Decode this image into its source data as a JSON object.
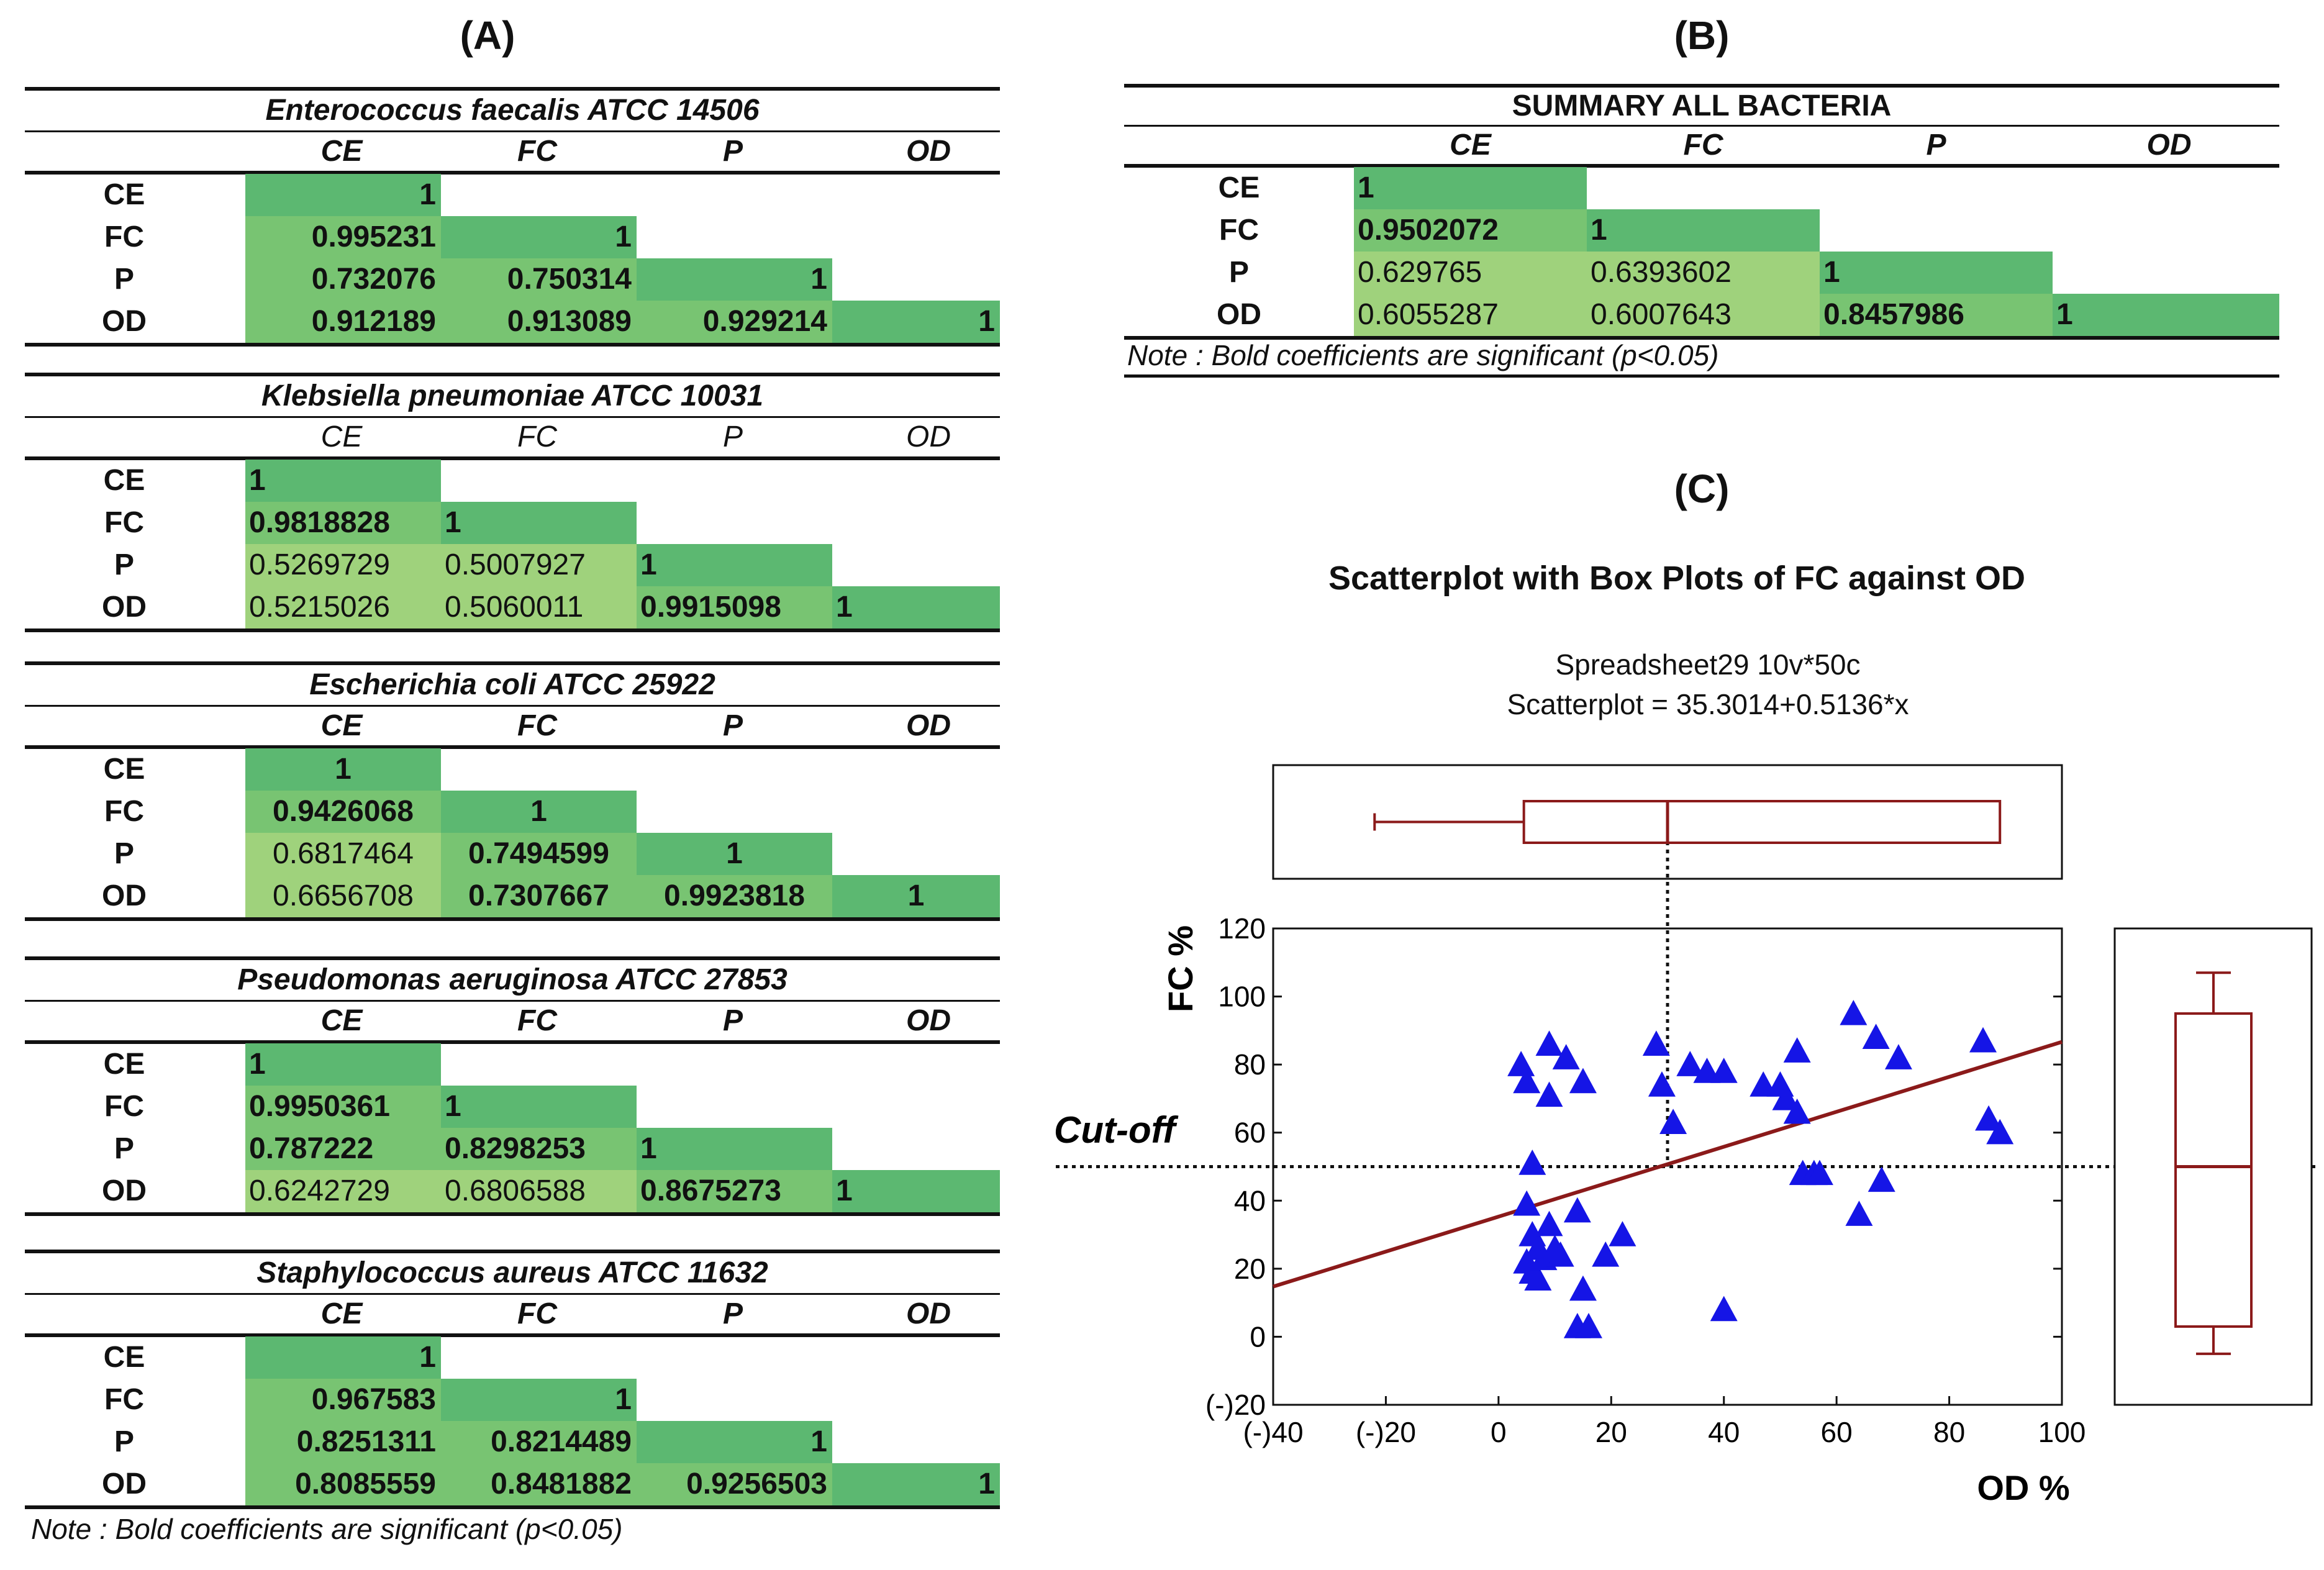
{
  "panels": {
    "a": "(A)",
    "b": "(B)",
    "c": "(C)"
  },
  "tables": [
    {
      "title": "Enterococcus faecalis ATCC 14506",
      "header_bold": true,
      "align": "right",
      "columns": [
        "CE",
        "FC",
        "P",
        "OD"
      ],
      "rows": [
        {
          "label": "CE",
          "values": [
            "1"
          ],
          "bold": [
            true
          ]
        },
        {
          "label": "FC",
          "values": [
            "0.995231",
            "1"
          ],
          "bold": [
            true,
            true
          ]
        },
        {
          "label": "P",
          "values": [
            "0.732076",
            "0.750314",
            "1"
          ],
          "bold": [
            true,
            true,
            true
          ]
        },
        {
          "label": "OD",
          "values": [
            "0.912189",
            "0.913089",
            "0.929214",
            "1"
          ],
          "bold": [
            true,
            true,
            true,
            true
          ]
        }
      ]
    },
    {
      "title": "Klebsiella pneumoniae ATCC 10031",
      "header_bold": false,
      "align": "left",
      "columns": [
        "CE",
        "FC",
        "P",
        "OD"
      ],
      "rows": [
        {
          "label": "CE",
          "values": [
            "1"
          ],
          "bold": [
            true
          ]
        },
        {
          "label": "FC",
          "values": [
            "0.9818828",
            "1"
          ],
          "bold": [
            true,
            true
          ]
        },
        {
          "label": "P",
          "values": [
            "0.5269729",
            "0.5007927",
            "1"
          ],
          "bold": [
            false,
            false,
            true
          ]
        },
        {
          "label": "OD",
          "values": [
            "0.5215026",
            "0.5060011",
            "0.9915098",
            "1"
          ],
          "bold": [
            false,
            false,
            true,
            true
          ]
        }
      ]
    },
    {
      "title": "Escherichia coli ATCC 25922",
      "header_bold": true,
      "align": "center",
      "columns": [
        "CE",
        "FC",
        "P",
        "OD"
      ],
      "rows": [
        {
          "label": "CE",
          "values": [
            "1"
          ],
          "bold": [
            true
          ]
        },
        {
          "label": "FC",
          "values": [
            "0.9426068",
            "1"
          ],
          "bold": [
            true,
            true
          ]
        },
        {
          "label": "P",
          "values": [
            "0.6817464",
            "0.7494599",
            "1"
          ],
          "bold": [
            false,
            true,
            true
          ]
        },
        {
          "label": "OD",
          "values": [
            "0.6656708",
            "0.7307667",
            "0.9923818",
            "1"
          ],
          "bold": [
            false,
            true,
            true,
            true
          ]
        }
      ]
    },
    {
      "title": "Pseudomonas aeruginosa ATCC 27853",
      "header_bold": true,
      "align": "left",
      "columns": [
        "CE",
        "FC",
        "P",
        "OD"
      ],
      "rows": [
        {
          "label": "CE",
          "values": [
            "1"
          ],
          "bold": [
            true
          ]
        },
        {
          "label": "FC",
          "values": [
            "0.9950361",
            "1"
          ],
          "bold": [
            true,
            true
          ]
        },
        {
          "label": "P",
          "values": [
            "0.787222",
            "0.8298253",
            "1"
          ],
          "bold": [
            true,
            true,
            true
          ]
        },
        {
          "label": "OD",
          "values": [
            "0.6242729",
            "0.6806588",
            "0.8675273",
            "1"
          ],
          "bold": [
            false,
            false,
            true,
            true
          ]
        }
      ]
    },
    {
      "title": "Staphylococcus aureus ATCC 11632",
      "header_bold": true,
      "align": "right",
      "columns": [
        "CE",
        "FC",
        "P",
        "OD"
      ],
      "rows": [
        {
          "label": "CE",
          "values": [
            "1"
          ],
          "bold": [
            true
          ]
        },
        {
          "label": "FC",
          "values": [
            "0.967583",
            "1"
          ],
          "bold": [
            true,
            true
          ]
        },
        {
          "label": "P",
          "values": [
            "0.8251311",
            "0.8214489",
            "1"
          ],
          "bold": [
            true,
            true,
            true
          ]
        },
        {
          "label": "OD",
          "values": [
            "0.8085559",
            "0.8481882",
            "0.9256503",
            "1"
          ],
          "bold": [
            true,
            true,
            true,
            true
          ]
        }
      ]
    }
  ],
  "note_a": "Note : Bold coefficients are significant (p<0.05)",
  "summary": {
    "title": "SUMMARY ALL BACTERIA",
    "columns": [
      "CE",
      "FC",
      "P",
      "OD"
    ],
    "rows": [
      {
        "label": "CE",
        "values": [
          "1"
        ],
        "bold": [
          true
        ]
      },
      {
        "label": "FC",
        "values": [
          "0.9502072",
          "1"
        ],
        "bold": [
          true,
          true
        ]
      },
      {
        "label": "P",
        "values": [
          "0.629765",
          "0.6393602",
          "1"
        ],
        "bold": [
          false,
          false,
          true
        ]
      },
      {
        "label": "OD",
        "values": [
          "0.6055287",
          "0.6007643",
          "0.8457986",
          "1"
        ],
        "bold": [
          false,
          false,
          true,
          true
        ]
      }
    ],
    "note": "Note : Bold coefficients are significant (p<0.05)"
  },
  "colors": {
    "dark_green": "#5cb871",
    "light_green": "#9fd27c",
    "triangle": "#1515e6",
    "line": "#8b1a1a"
  },
  "chart_data": {
    "type": "scatter",
    "title": "Scatterplot with Box Plots of FC against OD",
    "subtitle1": "Spreadsheet29 10v*50c",
    "subtitle2": "Scatterplot = 35.3014+0.5136*x",
    "xlabel": "OD %",
    "ylabel": "FC %",
    "xlim": [
      -40,
      100
    ],
    "ylim": [
      -20,
      120
    ],
    "xticks": [
      -40,
      -20,
      0,
      20,
      40,
      60,
      80,
      100
    ],
    "xtick_labels": [
      "(-)40",
      "(-)20",
      "0",
      "20",
      "40",
      "60",
      "80",
      "100"
    ],
    "yticks": [
      -20,
      0,
      20,
      40,
      60,
      80,
      100,
      120
    ],
    "ytick_labels": [
      "(-)20",
      "0",
      "20",
      "40",
      "60",
      "80",
      "100",
      "120"
    ],
    "regression": {
      "intercept": 35.3014,
      "slope": 0.5136
    },
    "cutoff_label": "Cut-off",
    "cutoff_y": 50,
    "cutoff_x": 30,
    "points": [
      [
        4,
        80
      ],
      [
        5,
        75
      ],
      [
        9,
        86
      ],
      [
        9,
        71
      ],
      [
        12,
        82
      ],
      [
        15,
        75
      ],
      [
        6,
        51
      ],
      [
        5,
        39
      ],
      [
        6,
        30
      ],
      [
        7,
        26
      ],
      [
        9,
        33
      ],
      [
        10,
        26
      ],
      [
        5,
        22
      ],
      [
        7,
        17
      ],
      [
        6,
        19
      ],
      [
        8,
        23
      ],
      [
        11,
        24
      ],
      [
        14,
        37
      ],
      [
        15,
        14
      ],
      [
        14,
        3
      ],
      [
        16,
        3
      ],
      [
        19,
        24
      ],
      [
        22,
        30
      ],
      [
        28,
        86
      ],
      [
        29,
        74
      ],
      [
        31,
        63
      ],
      [
        34,
        80
      ],
      [
        37,
        78
      ],
      [
        40,
        78
      ],
      [
        40,
        8
      ],
      [
        47,
        74
      ],
      [
        50,
        74
      ],
      [
        51,
        70
      ],
      [
        53,
        84
      ],
      [
        53,
        66
      ],
      [
        54,
        48
      ],
      [
        56,
        48
      ],
      [
        57,
        48
      ],
      [
        63,
        95
      ],
      [
        67,
        88
      ],
      [
        71,
        82
      ],
      [
        68,
        46
      ],
      [
        64,
        36
      ],
      [
        86,
        87
      ],
      [
        87,
        64
      ],
      [
        89,
        60
      ]
    ],
    "box_x": {
      "whisker_min": -22,
      "q1": 4.5,
      "median": 30,
      "q3": 89,
      "whisker_max": 89
    },
    "box_y": {
      "whisker_min": -5,
      "q1": 3,
      "median": 50,
      "q3": 95,
      "whisker_max": 107
    }
  }
}
